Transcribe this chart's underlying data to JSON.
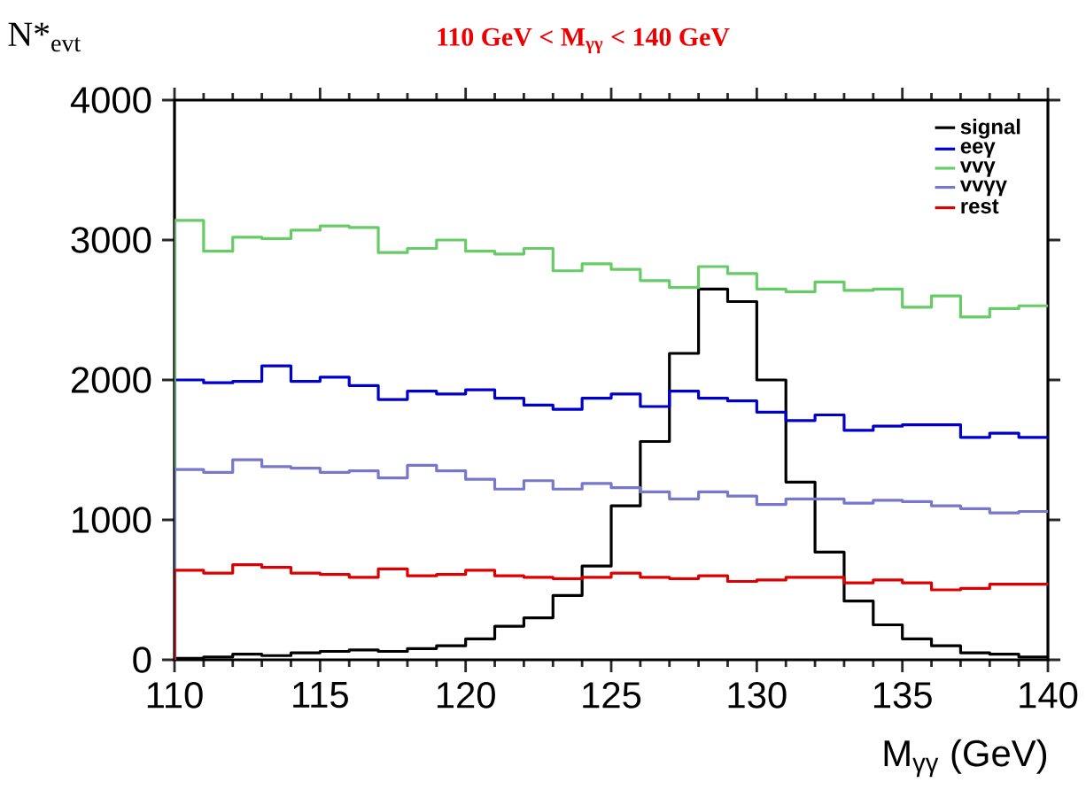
{
  "chart_data": {
    "type": "histogram",
    "title": "110 GeV < M$_{γγ}$ < 140 GeV",
    "xlabel": "M$_{γγ}$ (GeV)",
    "ylabel": "N*$_{evt}$",
    "bins": [
      110,
      111,
      112,
      113,
      114,
      115,
      116,
      117,
      118,
      119,
      120,
      121,
      122,
      123,
      124,
      125,
      126,
      127,
      128,
      129,
      130,
      131,
      132,
      133,
      134,
      135,
      136,
      137,
      138,
      139,
      140
    ],
    "series": [
      {
        "name": "signal",
        "color": "#000000",
        "values": [
          10,
          20,
          40,
          30,
          50,
          60,
          70,
          60,
          80,
          100,
          150,
          240,
          300,
          460,
          670,
          1100,
          1560,
          2190,
          2650,
          2560,
          2000,
          1270,
          770,
          420,
          250,
          150,
          100,
          50,
          40,
          20
        ]
      },
      {
        "name": "eeγ",
        "color": "#0000cc",
        "values": [
          2000,
          1980,
          1990,
          2100,
          1990,
          2020,
          1960,
          1860,
          1920,
          1900,
          1930,
          1870,
          1820,
          1790,
          1870,
          1900,
          1810,
          1920,
          1870,
          1850,
          1770,
          1710,
          1750,
          1640,
          1670,
          1680,
          1680,
          1590,
          1620,
          1590
        ]
      },
      {
        "name": "vvγ",
        "color": "#66cc66",
        "values": [
          3140,
          2920,
          3020,
          3010,
          3070,
          3100,
          3090,
          2910,
          2940,
          3000,
          2920,
          2900,
          2940,
          2780,
          2830,
          2790,
          2710,
          2660,
          2810,
          2760,
          2650,
          2630,
          2700,
          2640,
          2650,
          2520,
          2600,
          2450,
          2510,
          2530
        ]
      },
      {
        "name": "vvγγ",
        "color": "#7777cc",
        "values": [
          1360,
          1340,
          1430,
          1380,
          1370,
          1340,
          1350,
          1300,
          1390,
          1350,
          1290,
          1220,
          1280,
          1220,
          1260,
          1230,
          1200,
          1150,
          1200,
          1170,
          1110,
          1150,
          1150,
          1120,
          1140,
          1130,
          1100,
          1080,
          1050,
          1060
        ]
      },
      {
        "name": "rest",
        "color": "#dd0000",
        "values": [
          640,
          620,
          680,
          660,
          620,
          610,
          590,
          650,
          600,
          610,
          640,
          600,
          590,
          580,
          590,
          620,
          590,
          580,
          600,
          560,
          570,
          590,
          590,
          550,
          570,
          550,
          500,
          510,
          540,
          540
        ]
      }
    ],
    "xlim": [
      110,
      140
    ],
    "ylim": [
      0,
      4000
    ],
    "xticks": [
      110,
      115,
      120,
      125,
      130,
      135,
      140
    ],
    "yticks": [
      0,
      1000,
      2000,
      3000,
      4000
    ],
    "legend": "top right"
  }
}
